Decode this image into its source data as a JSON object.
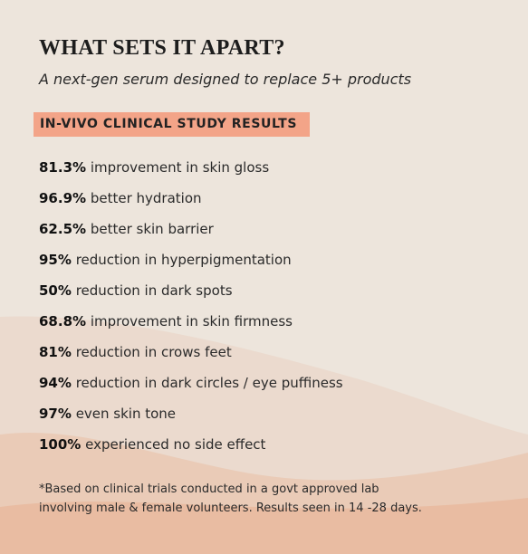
{
  "header": {
    "title": "WHAT SETS IT APART?",
    "subtitle": "A next-gen serum designed to replace 5+ products"
  },
  "badge": "IN-VIVO CLINICAL STUDY RESULTS",
  "results": [
    {
      "value": "81.3%",
      "text": "improvement in skin gloss"
    },
    {
      "value": "96.9%",
      "text": "better hydration"
    },
    {
      "value": "62.5%",
      "text": "better skin barrier"
    },
    {
      "value": "95%",
      "text": "reduction in hyperpigmentation"
    },
    {
      "value": "50%",
      "text": "reduction in dark spots"
    },
    {
      "value": "68.8%",
      "text": "improvement in skin firmness"
    },
    {
      "value": "81%",
      "text": "reduction in crows feet"
    },
    {
      "value": "94%",
      "text": "reduction in dark circles / eye puffiness"
    },
    {
      "value": "97%",
      "text": "even skin tone"
    },
    {
      "value": "100%",
      "text": "experienced no side effect"
    }
  ],
  "footnote": [
    "*Based on clinical trials conducted in a govt approved lab",
    "involving male & female volunteers. Results seen in 14 -28 days."
  ]
}
